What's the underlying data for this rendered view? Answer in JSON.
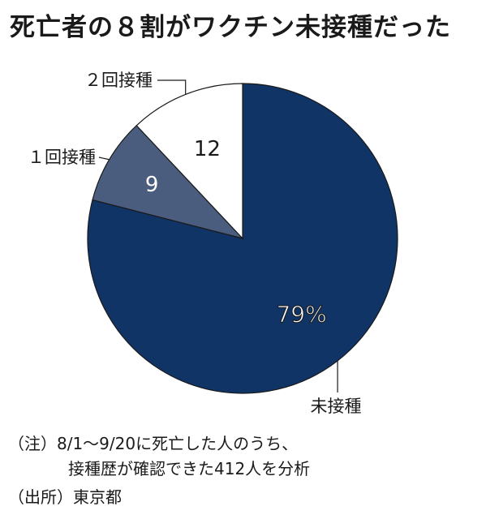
{
  "title": "死亡者の８割がワクチン未接種だった",
  "chart_data": {
    "type": "pie",
    "slices": [
      {
        "label": "未接種",
        "value": 79,
        "value_label": "79%",
        "color": "#0f3465",
        "label_color": "#ffffff",
        "label_outline": true
      },
      {
        "label": "１回接種",
        "value": 9,
        "value_label": "9",
        "color": "#4a5d7e",
        "label_color": "#ffffff",
        "label_outline": false
      },
      {
        "label": "２回接種",
        "value": 12,
        "value_label": "12",
        "color": "#ffffff",
        "label_color": "#1a1a1a",
        "label_outline": false
      }
    ],
    "start": "12 o'clock",
    "direction": "clockwise",
    "unit": "%"
  },
  "notes": {
    "line1": "（注）8/1〜9/20に死亡した人のうち、",
    "line2": "接種歴が確認できた412人を分析",
    "source": "（出所）東京都"
  }
}
